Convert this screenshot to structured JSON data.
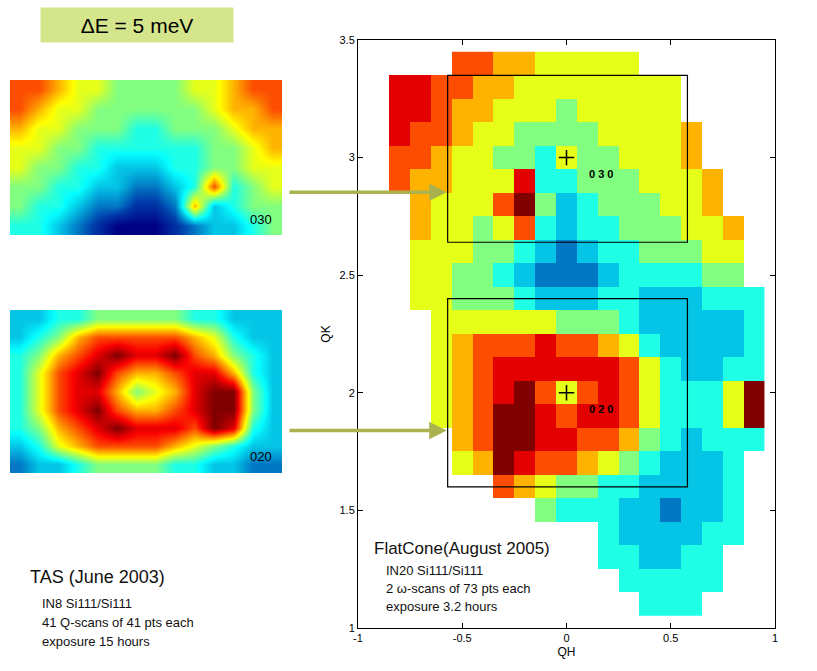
{
  "header": {
    "text": "ΔE = 5 meV"
  },
  "chart_data": [
    {
      "type": "heatmap",
      "label": "030",
      "tick_labels": false,
      "zlim": [
        0,
        10
      ],
      "z": [
        [
          8,
          8,
          7,
          6,
          6,
          5,
          5,
          5,
          5,
          6,
          6,
          7,
          8,
          8
        ],
        [
          8,
          7,
          6,
          6,
          5,
          5,
          5,
          5,
          5,
          5,
          6,
          7,
          7,
          8
        ],
        [
          7,
          6,
          6,
          5,
          5,
          5,
          4,
          4,
          5,
          5,
          5,
          6,
          7,
          7
        ],
        [
          6,
          6,
          5,
          5,
          4,
          4,
          4,
          4,
          4,
          4,
          5,
          5,
          6,
          7
        ],
        [
          6,
          5,
          5,
          4,
          4,
          3,
          3,
          3,
          4,
          4,
          5,
          5,
          6,
          6
        ],
        [
          5,
          5,
          4,
          4,
          3,
          3,
          2,
          2,
          3,
          4,
          8,
          4,
          5,
          6
        ],
        [
          5,
          4,
          4,
          3,
          2,
          2,
          1,
          1,
          2,
          7,
          3,
          4,
          5,
          5
        ],
        [
          4,
          4,
          3,
          2,
          1,
          0,
          0,
          0,
          1,
          2,
          3,
          3,
          4,
          5
        ]
      ]
    },
    {
      "type": "heatmap",
      "label": "020",
      "tick_labels": false,
      "zlim": [
        0,
        10
      ],
      "z": [
        [
          3,
          3,
          4,
          4,
          5,
          5,
          5,
          5,
          5,
          4,
          4,
          3,
          3,
          3
        ],
        [
          3,
          4,
          5,
          7,
          8,
          8,
          8,
          8,
          8,
          7,
          6,
          4,
          3,
          3
        ],
        [
          4,
          5,
          7,
          8,
          9,
          10,
          9,
          9,
          10,
          8,
          7,
          5,
          4,
          3
        ],
        [
          4,
          6,
          8,
          9,
          10,
          8,
          7,
          7,
          8,
          9,
          9,
          7,
          4,
          3
        ],
        [
          4,
          6,
          8,
          9,
          9,
          7,
          5,
          6,
          7,
          9,
          10,
          10,
          5,
          3
        ],
        [
          4,
          6,
          8,
          9,
          10,
          8,
          7,
          7,
          8,
          9,
          10,
          10,
          5,
          3
        ],
        [
          4,
          5,
          7,
          8,
          9,
          10,
          9,
          9,
          9,
          8,
          10,
          9,
          4,
          3
        ],
        [
          3,
          4,
          6,
          7,
          8,
          8,
          8,
          8,
          7,
          6,
          5,
          4,
          3,
          3
        ],
        [
          2,
          3,
          3,
          4,
          5,
          5,
          5,
          5,
          4,
          4,
          3,
          3,
          2,
          2
        ]
      ]
    },
    {
      "type": "heatmap",
      "xlabel": "QH",
      "ylabel": "QK",
      "xlim": [
        -1,
        1
      ],
      "ylim": [
        1,
        3.5
      ],
      "xticks": [
        -1,
        -0.5,
        0,
        0.5,
        1
      ],
      "yticks": [
        1,
        1.5,
        2,
        2.5,
        3,
        3.5
      ],
      "grid": false,
      "zlim": [
        0,
        10
      ],
      "marker": "cross",
      "x": [
        -0.9,
        -0.8,
        -0.7,
        -0.6,
        -0.5,
        -0.4,
        -0.3,
        -0.2,
        -0.1,
        0,
        0.1,
        0.2,
        0.3,
        0.4,
        0.5,
        0.6,
        0.7,
        0.8,
        0.9
      ],
      "y": [
        3.4,
        3.3,
        3.2,
        3.1,
        3.0,
        2.9,
        2.8,
        2.7,
        2.6,
        2.5,
        2.4,
        2.3,
        2.2,
        2.1,
        2.0,
        1.9,
        1.8,
        1.7,
        1.6,
        1.5,
        1.4,
        1.3,
        1.2,
        1.1
      ],
      "z": [
        [
          null,
          null,
          null,
          null,
          8,
          8,
          7,
          7,
          6,
          6,
          6,
          6,
          6,
          null,
          null,
          null,
          null,
          null,
          null
        ],
        [
          null,
          9,
          9,
          8,
          8,
          7,
          7,
          6,
          6,
          6,
          6,
          6,
          6,
          6,
          6,
          null,
          null,
          null,
          null
        ],
        [
          null,
          9,
          9,
          8,
          7,
          7,
          6,
          6,
          6,
          5,
          6,
          6,
          6,
          6,
          6,
          null,
          null,
          null,
          null
        ],
        [
          null,
          9,
          8,
          8,
          7,
          6,
          6,
          5,
          5,
          5,
          5,
          6,
          6,
          6,
          6,
          7,
          null,
          null,
          null
        ],
        [
          null,
          8,
          8,
          7,
          6,
          6,
          5,
          5,
          4,
          6,
          5,
          5,
          6,
          6,
          6,
          7,
          null,
          null,
          null
        ],
        [
          null,
          8,
          7,
          7,
          6,
          6,
          6,
          9,
          4,
          4,
          5,
          5,
          5,
          6,
          6,
          6,
          7,
          null,
          null
        ],
        [
          null,
          null,
          7,
          6,
          6,
          6,
          8,
          10,
          5,
          3,
          4,
          5,
          5,
          5,
          6,
          6,
          7,
          null,
          null
        ],
        [
          null,
          null,
          7,
          6,
          6,
          5,
          6,
          8,
          4,
          3,
          4,
          4,
          5,
          5,
          5,
          6,
          6,
          7,
          null
        ],
        [
          null,
          null,
          6,
          6,
          6,
          5,
          5,
          4,
          3,
          2,
          3,
          4,
          4,
          5,
          5,
          5,
          6,
          6,
          null
        ],
        [
          null,
          null,
          6,
          6,
          5,
          5,
          4,
          3,
          2,
          2,
          2,
          3,
          4,
          4,
          4,
          4,
          5,
          5,
          null
        ],
        [
          null,
          null,
          6,
          6,
          5,
          5,
          5,
          4,
          3,
          3,
          3,
          4,
          4,
          3,
          3,
          3,
          4,
          4,
          4
        ],
        [
          null,
          null,
          null,
          6,
          6,
          6,
          6,
          6,
          6,
          5,
          5,
          5,
          4,
          3,
          3,
          3,
          3,
          3,
          4
        ],
        [
          null,
          null,
          null,
          6,
          7,
          8,
          8,
          8,
          9,
          8,
          8,
          7,
          6,
          4,
          3,
          3,
          3,
          3,
          4
        ],
        [
          null,
          null,
          null,
          6,
          7,
          8,
          9,
          9,
          9,
          9,
          9,
          9,
          8,
          6,
          4,
          3,
          3,
          4,
          4
        ],
        [
          null,
          null,
          null,
          6,
          7,
          8,
          9,
          10,
          8,
          6,
          8,
          9,
          8,
          6,
          4,
          4,
          4,
          6,
          10
        ],
        [
          null,
          null,
          null,
          6,
          7,
          8,
          10,
          10,
          9,
          8,
          9,
          9,
          8,
          6,
          4,
          4,
          4,
          6,
          10
        ],
        [
          null,
          null,
          null,
          null,
          7,
          8,
          10,
          10,
          9,
          9,
          8,
          8,
          7,
          5,
          4,
          3,
          4,
          4,
          4
        ],
        [
          null,
          null,
          null,
          null,
          6,
          7,
          10,
          9,
          8,
          8,
          7,
          6,
          5,
          4,
          3,
          3,
          3,
          4,
          null
        ],
        [
          null,
          null,
          null,
          null,
          null,
          null,
          8,
          7,
          6,
          5,
          5,
          4,
          4,
          3,
          3,
          3,
          3,
          4,
          null
        ],
        [
          null,
          null,
          null,
          null,
          null,
          null,
          null,
          null,
          5,
          4,
          4,
          4,
          3,
          3,
          2,
          3,
          3,
          4,
          null
        ],
        [
          null,
          null,
          null,
          null,
          null,
          null,
          null,
          null,
          null,
          null,
          null,
          4,
          3,
          3,
          3,
          3,
          4,
          4,
          null
        ],
        [
          null,
          null,
          null,
          null,
          null,
          null,
          null,
          null,
          null,
          null,
          null,
          4,
          4,
          3,
          3,
          4,
          4,
          null,
          null
        ],
        [
          null,
          null,
          null,
          null,
          null,
          null,
          null,
          null,
          null,
          null,
          null,
          null,
          4,
          4,
          4,
          4,
          4,
          null,
          null
        ],
        [
          null,
          null,
          null,
          null,
          null,
          null,
          null,
          null,
          null,
          null,
          null,
          null,
          null,
          4,
          4,
          4,
          null,
          null,
          null
        ]
      ],
      "boxes": [
        {
          "qh": [
            -0.57,
            0.58
          ],
          "qk": [
            2.64,
            3.35
          ]
        },
        {
          "qh": [
            -0.57,
            0.58
          ],
          "qk": [
            1.6,
            2.4
          ]
        }
      ],
      "peaks": [
        {
          "qh": 0,
          "qk": 3,
          "label": "0 3 0"
        },
        {
          "qh": 0,
          "qk": 2,
          "label": "0 2 0"
        }
      ]
    }
  ],
  "captions": [
    {
      "title": "TAS (June 2003)",
      "lines": [
        "IN8 Si111/Si111",
        "41 Q-scans of 41 pts each",
        "exposure 15 hours"
      ]
    },
    {
      "title": "FlatCone(August 2005)",
      "lines": [
        "IN20 Si111/Si111",
        "2 ω-scans of 73 pts each",
        "exposure 3.2 hours"
      ]
    }
  ]
}
